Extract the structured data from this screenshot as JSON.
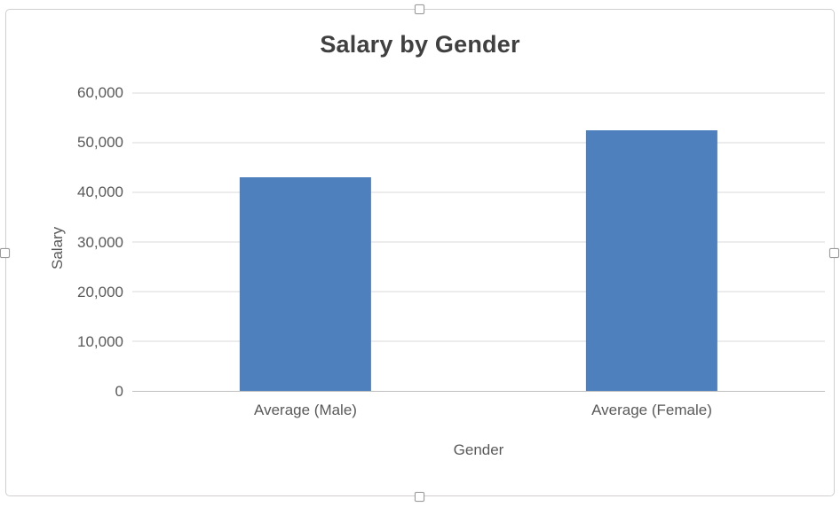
{
  "chart_data": {
    "type": "bar",
    "title": "Salary by Gender",
    "xlabel": "Gender",
    "ylabel": "Salary",
    "categories": [
      "Average (Male)",
      "Average (Female)"
    ],
    "values": [
      43000,
      52500
    ],
    "ylim": [
      0,
      60000
    ],
    "yticks": [
      0,
      10000,
      20000,
      30000,
      40000,
      50000,
      60000
    ],
    "ytick_labels": [
      "0",
      "10,000",
      "20,000",
      "30,000",
      "40,000",
      "50,000",
      "60,000"
    ],
    "bar_color": "#4e80bd",
    "gridline_color": "#d9d9d9",
    "axis_line_color": "#bfbfbf",
    "grid": true,
    "legend": false
  }
}
